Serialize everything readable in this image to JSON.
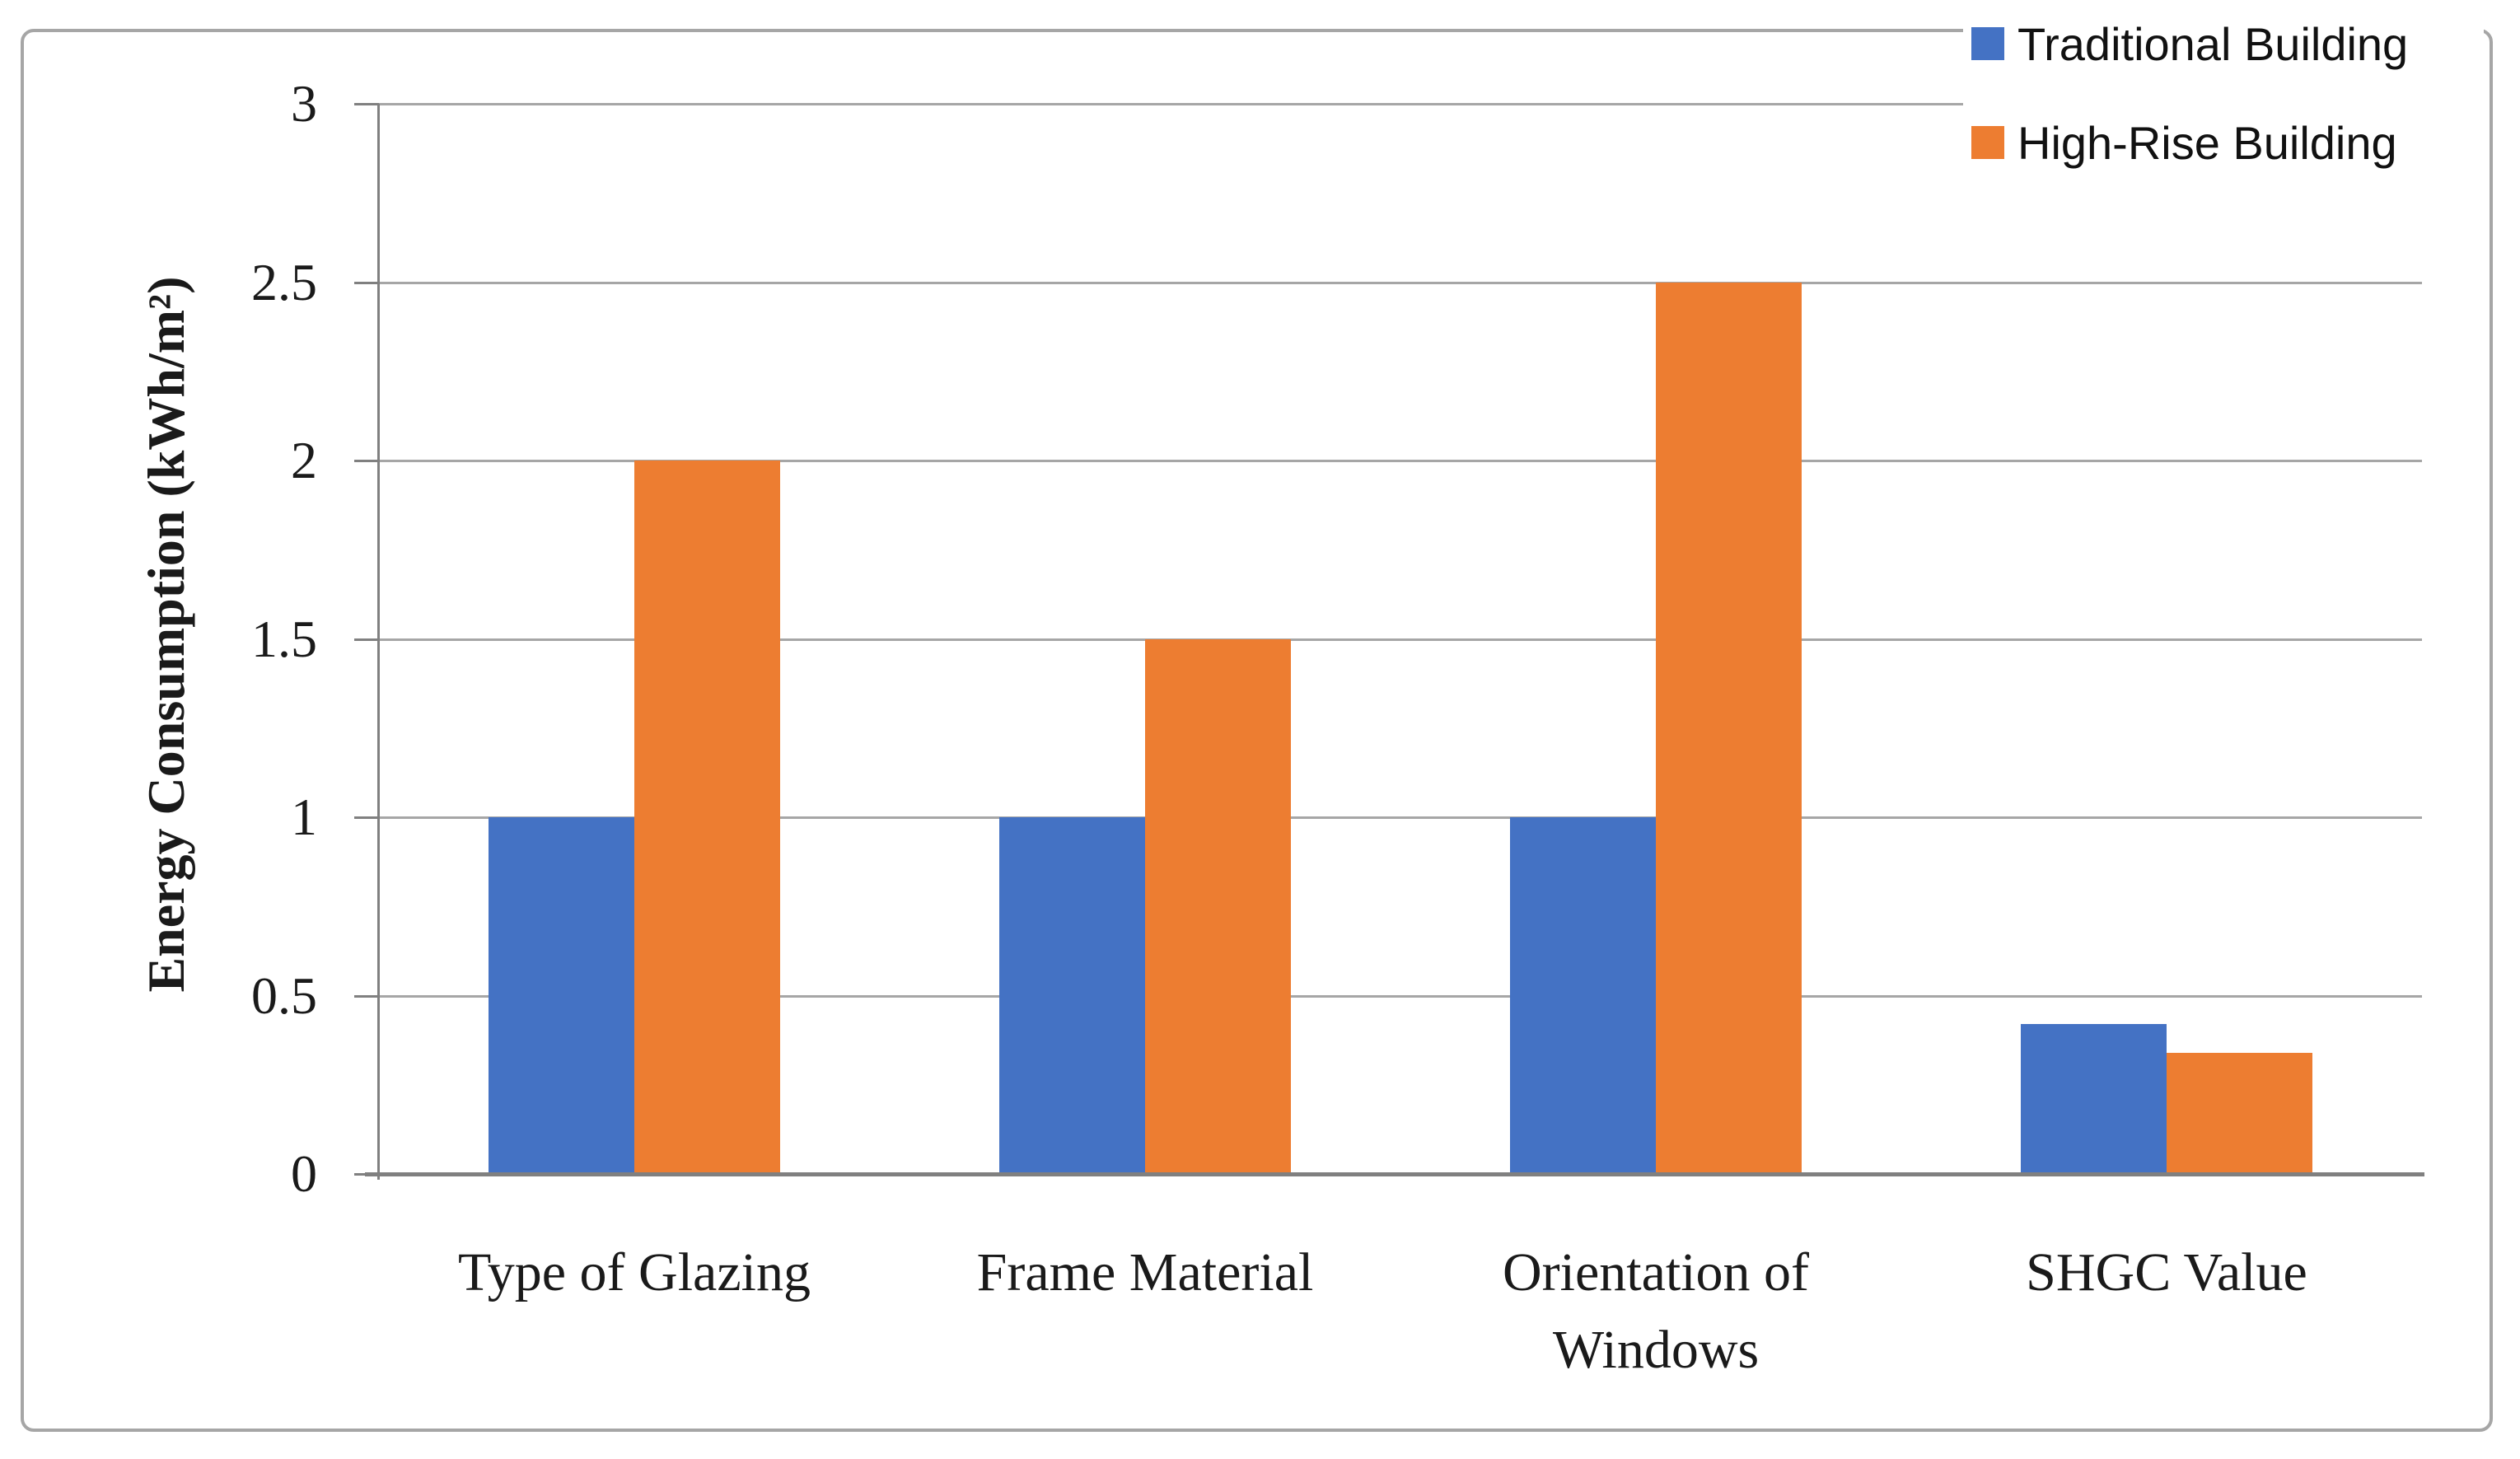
{
  "figure": {
    "background_color": "#FFFFFF",
    "border_color": "#A6A6A6"
  },
  "legend": {
    "position": "top-right",
    "entries": [
      {
        "label": "Traditional Building",
        "color": "#4472C4"
      },
      {
        "label": "High-Rise Building",
        "color": "#ED7D31"
      }
    ]
  },
  "chart_data": {
    "type": "bar",
    "title": "",
    "categories": [
      "Type of Glazing",
      "Frame Material",
      "Orientation of Windows",
      "SHGC Value"
    ],
    "series": [
      {
        "name": "Traditional Building",
        "color": "#4472C4",
        "values": [
          1,
          1,
          1,
          0.42
        ]
      },
      {
        "name": "High-Rise Building",
        "color": "#ED7D31",
        "values": [
          2,
          1.5,
          2.5,
          0.34
        ]
      }
    ],
    "xlabel": "",
    "ylabel": "Energy Consumption (kWh/m²)",
    "ylim": [
      0,
      3
    ],
    "ytick_step": 0.5,
    "ytick_labels": [
      "0",
      "0.5",
      "1",
      "1.5",
      "2",
      "2.5",
      "3"
    ],
    "grid": true,
    "gridline_color": "#A6A6A6",
    "axis_color": "#808080",
    "legend_position": "top-right"
  }
}
